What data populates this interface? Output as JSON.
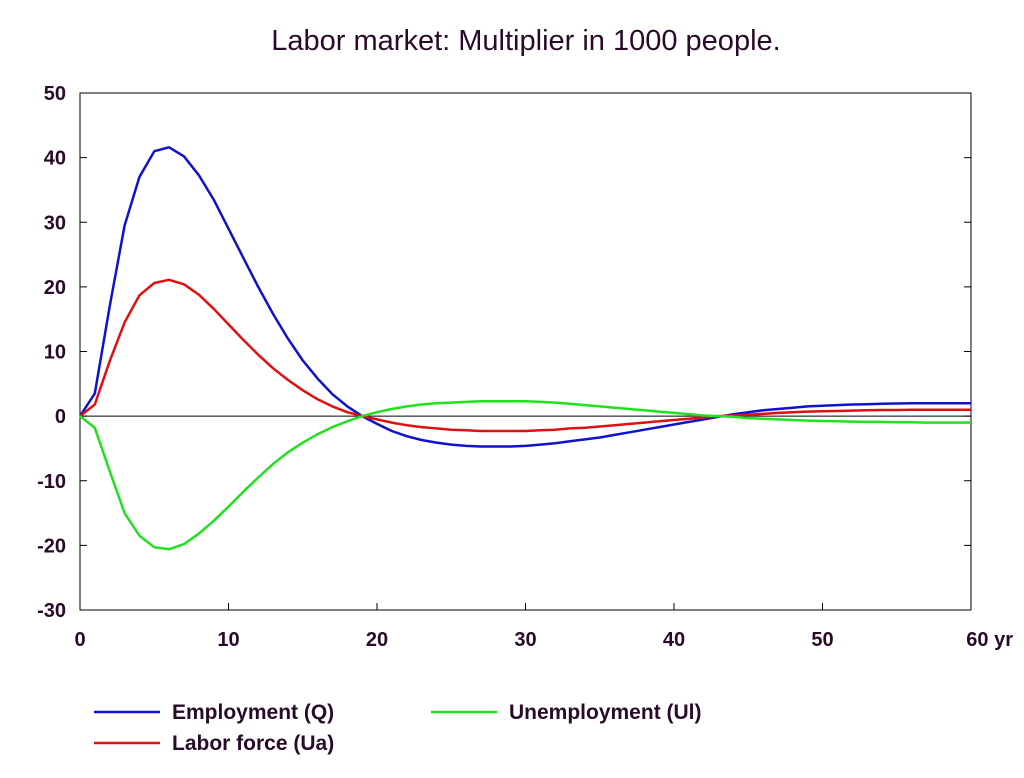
{
  "chart_data": {
    "type": "line",
    "title": "Labor market: Multiplier in 1000 people.",
    "xlabel": "",
    "ylabel": "",
    "xlim": [
      0,
      60
    ],
    "ylim": [
      -30,
      50
    ],
    "x_ticks": [
      0,
      10,
      20,
      30,
      40,
      50,
      60
    ],
    "x_tick_labels": [
      "0",
      "10",
      "20",
      "30",
      "40",
      "50",
      "60 yr"
    ],
    "y_ticks": [
      50,
      40,
      30,
      20,
      10,
      0,
      -10,
      -20,
      -30
    ],
    "y_tick_labels": [
      "50",
      "40",
      "30",
      "20",
      "10",
      "0",
      "-10",
      "-20",
      "-30"
    ],
    "zero_line": true,
    "grid": false,
    "legend_position": "bottom",
    "x": [
      0,
      1,
      2,
      3,
      4,
      5,
      6,
      7,
      8,
      9,
      10,
      11,
      12,
      13,
      14,
      15,
      16,
      17,
      18,
      19,
      20,
      21,
      22,
      23,
      24,
      25,
      26,
      27,
      28,
      29,
      30,
      31,
      32,
      33,
      34,
      35,
      36,
      37,
      38,
      39,
      40,
      41,
      42,
      43,
      44,
      45,
      46,
      47,
      48,
      49,
      50,
      51,
      52,
      53,
      54,
      55,
      56,
      57,
      58,
      59,
      60
    ],
    "series": [
      {
        "name": "Employment (Q)",
        "color": "#1010d0",
        "values": [
          0,
          3.5,
          17,
          29.5,
          37,
          41,
          41.6,
          40.2,
          37.3,
          33.5,
          29,
          24.5,
          20,
          15.8,
          12,
          8.6,
          5.8,
          3.4,
          1.5,
          0,
          -1.2,
          -2.3,
          -3.1,
          -3.7,
          -4.1,
          -4.4,
          -4.6,
          -4.7,
          -4.7,
          -4.7,
          -4.6,
          -4.4,
          -4.2,
          -3.9,
          -3.6,
          -3.3,
          -2.9,
          -2.5,
          -2.1,
          -1.7,
          -1.3,
          -0.9,
          -0.5,
          -0.1,
          0.3,
          0.6,
          0.9,
          1.1,
          1.3,
          1.5,
          1.6,
          1.7,
          1.8,
          1.85,
          1.9,
          1.95,
          2,
          2,
          2,
          2,
          2
        ]
      },
      {
        "name": "Labor force (Ua)",
        "color": "#e01010",
        "values": [
          0,
          1.8,
          8.5,
          14.5,
          18.7,
          20.6,
          21.1,
          20.4,
          18.8,
          16.6,
          14.2,
          11.8,
          9.5,
          7.4,
          5.6,
          4,
          2.6,
          1.5,
          0.6,
          0,
          -0.5,
          -1.0,
          -1.4,
          -1.7,
          -1.9,
          -2.1,
          -2.2,
          -2.3,
          -2.3,
          -2.3,
          -2.3,
          -2.2,
          -2.1,
          -1.9,
          -1.8,
          -1.6,
          -1.4,
          -1.2,
          -1,
          -0.8,
          -0.6,
          -0.4,
          -0.2,
          0,
          0.1,
          0.2,
          0.35,
          0.5,
          0.6,
          0.7,
          0.75,
          0.8,
          0.85,
          0.9,
          0.95,
          0.95,
          1,
          1,
          1,
          1,
          1
        ]
      },
      {
        "name": "Unemployment (Ul)",
        "color": "#20e020",
        "values": [
          0,
          -1.8,
          -8.5,
          -15,
          -18.5,
          -20.3,
          -20.6,
          -19.8,
          -18.2,
          -16.2,
          -14,
          -11.7,
          -9.5,
          -7.4,
          -5.6,
          -4.1,
          -2.8,
          -1.7,
          -0.8,
          0,
          0.6,
          1.1,
          1.5,
          1.8,
          2,
          2.1,
          2.2,
          2.3,
          2.3,
          2.3,
          2.3,
          2.2,
          2.1,
          1.9,
          1.7,
          1.5,
          1.3,
          1.1,
          0.9,
          0.7,
          0.5,
          0.3,
          0.1,
          0,
          -0.1,
          -0.3,
          -0.4,
          -0.5,
          -0.6,
          -0.7,
          -0.75,
          -0.8,
          -0.85,
          -0.9,
          -0.9,
          -0.95,
          -0.95,
          -1,
          -1,
          -1,
          -1
        ]
      }
    ]
  }
}
